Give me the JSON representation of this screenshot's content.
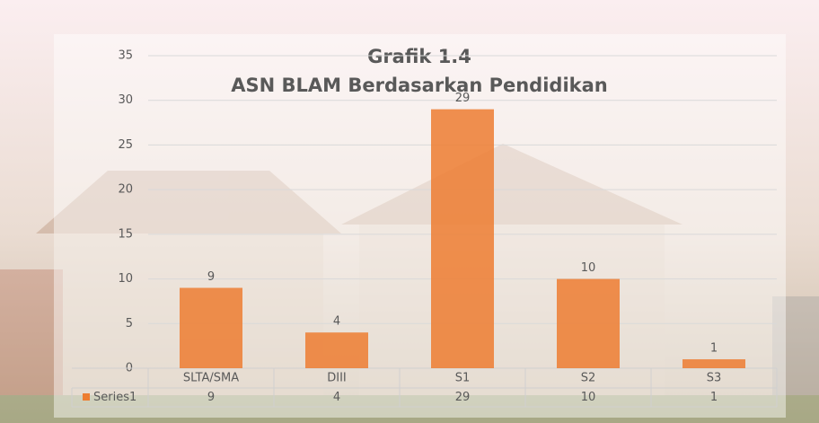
{
  "chart_data": {
    "type": "bar",
    "title": "Grafik 1.4",
    "subtitle": "ASN BLAM Berdasarkan Pendidikan",
    "categories": [
      "SLTA/SMA",
      "DIII",
      "S1",
      "S2",
      "S3"
    ],
    "series": [
      {
        "name": "Series1",
        "color": "#ed7d31",
        "values": [
          9,
          4,
          29,
          10,
          1
        ]
      }
    ],
    "ylim": [
      0,
      35
    ],
    "yticks": [
      0,
      5,
      10,
      15,
      20,
      25,
      30,
      35
    ],
    "grid": true,
    "data_table": true
  }
}
